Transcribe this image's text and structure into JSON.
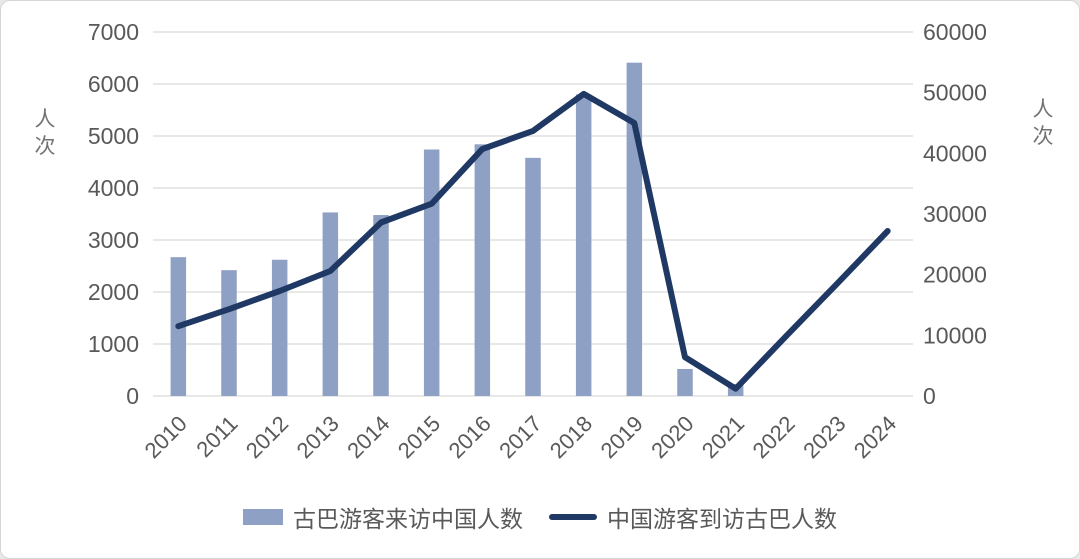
{
  "chart_data": {
    "type": "bar+line combo",
    "categories": [
      "2010",
      "2011",
      "2012",
      "2013",
      "2014",
      "2015",
      "2016",
      "2017",
      "2018",
      "2019",
      "2020",
      "2021",
      "2022",
      "2023",
      "2024"
    ],
    "series": [
      {
        "name": "古巴游客来访中国人数",
        "type": "bar",
        "axis": "left",
        "color": "#8EA0C3",
        "values": [
          2670,
          2420,
          2620,
          3530,
          3480,
          4740,
          4840,
          4580,
          5800,
          6410,
          520,
          230,
          null,
          null,
          null
        ]
      },
      {
        "name": "中国游客到访古巴人数",
        "type": "line",
        "axis": "right",
        "color": "#1F3864",
        "values": [
          11500,
          14300,
          17300,
          20600,
          28600,
          31700,
          40700,
          43700,
          49800,
          45000,
          6400,
          1200,
          9900,
          18500,
          27200
        ]
      }
    ],
    "left_axis": {
      "label": "人次",
      "min": 0,
      "max": 7000,
      "step": 1000
    },
    "right_axis": {
      "label": "人次",
      "min": 0,
      "max": 60000,
      "step": 10000
    },
    "grid": true,
    "legend_position": "bottom",
    "styles": {
      "text_color": "#595959",
      "grid_color": "#d9d9d9",
      "background": "#ffffff",
      "tick_font_size": 23,
      "year_font_size": 22
    }
  }
}
